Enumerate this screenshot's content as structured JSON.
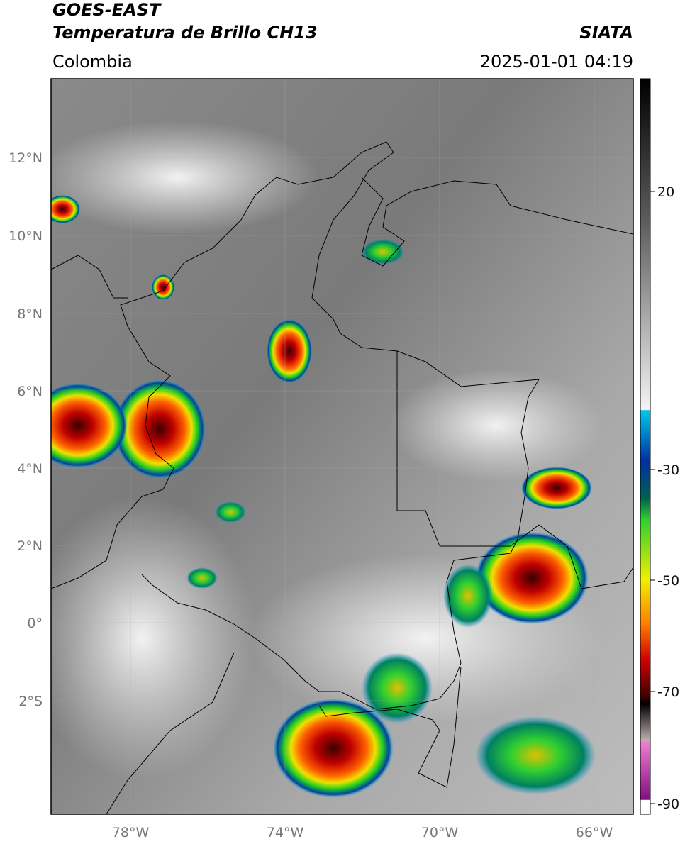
{
  "header": {
    "title": "GOES-EAST",
    "subtitle": "Temperatura de Brillo CH13",
    "source": "SIATA",
    "region": "Colombia",
    "timestamp": "2025-01-01 04:19"
  },
  "map": {
    "lat_labels": [
      "12°N",
      "10°N",
      "8°N",
      "6°N",
      "4°N",
      "2°N",
      "0°",
      "2°S"
    ],
    "lon_labels": [
      "78°W",
      "74°W",
      "70°W",
      "66°W"
    ]
  },
  "colorbar": {
    "labels": [
      20,
      -30,
      -50,
      -70,
      -90
    ]
  }
}
